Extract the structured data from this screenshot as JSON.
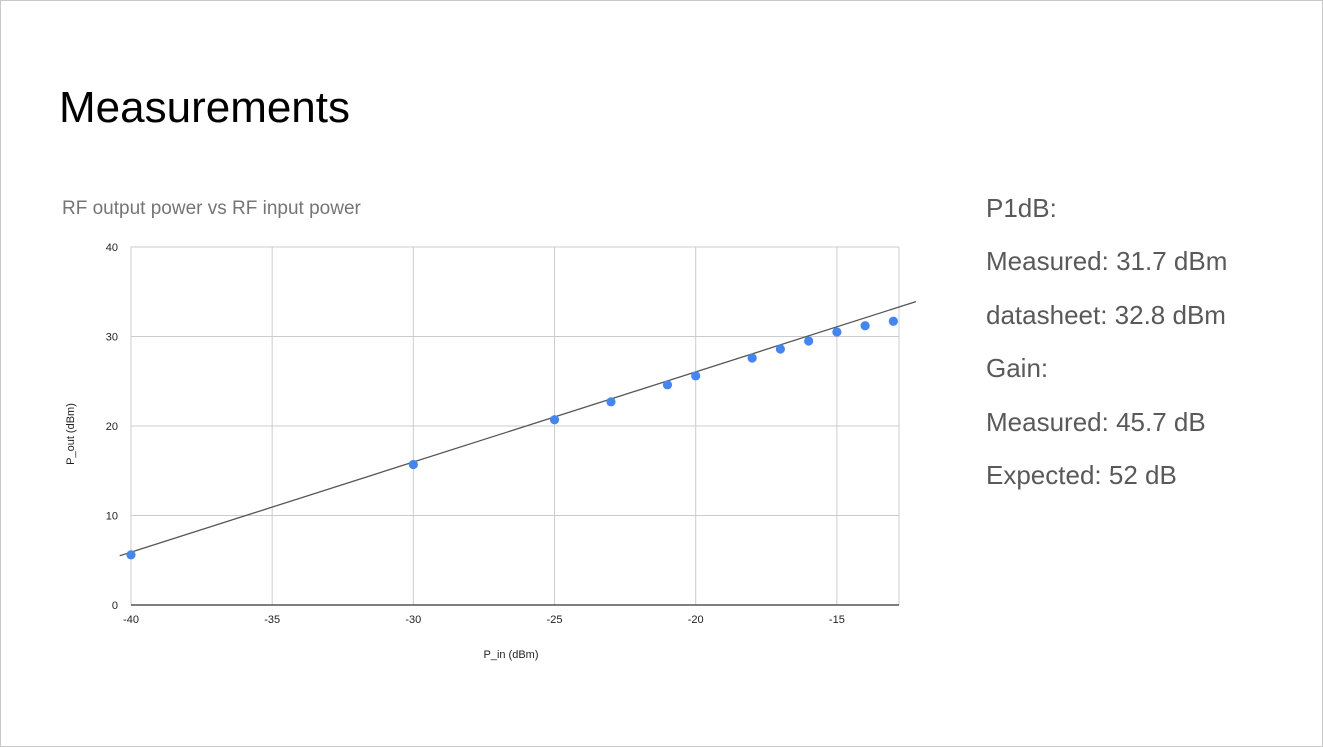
{
  "slide": {
    "title": "Measurements"
  },
  "stats": {
    "lines": [
      "P1dB:",
      "Measured: 31.7 dBm",
      "datasheet: 32.8 dBm",
      "Gain:",
      "Measured: 45.7 dB",
      "Expected: 52 dB"
    ]
  },
  "colors": {
    "points": "#4285f4",
    "trendline": "#555555",
    "grid": "#cccccc",
    "axis": "#333333",
    "title": "#757575",
    "stats_text": "#595959"
  },
  "chart_data": {
    "type": "scatter",
    "title": "RF output power vs RF input power",
    "xlabel": "P_in (dBm)",
    "ylabel": "P_out (dBm)",
    "xlim": [
      -40,
      -12.8
    ],
    "ylim": [
      0,
      40
    ],
    "xticks": [
      -40,
      -35,
      -30,
      -25,
      -20,
      -15
    ],
    "yticks": [
      0,
      10,
      20,
      30,
      40
    ],
    "grid": true,
    "legend": "none",
    "series": [
      {
        "x": [
          -40,
          -30,
          -25,
          -23,
          -21,
          -20,
          -18,
          -17,
          -16,
          -15,
          -14,
          -13
        ],
        "y": [
          5.6,
          15.7,
          20.7,
          22.7,
          24.6,
          25.6,
          27.6,
          28.6,
          29.5,
          30.5,
          31.2,
          31.7
        ]
      }
    ],
    "trendline": {
      "type": "linear",
      "x": [
        -40.4,
        -12.2
      ],
      "y": [
        5.5,
        33.9
      ]
    }
  }
}
